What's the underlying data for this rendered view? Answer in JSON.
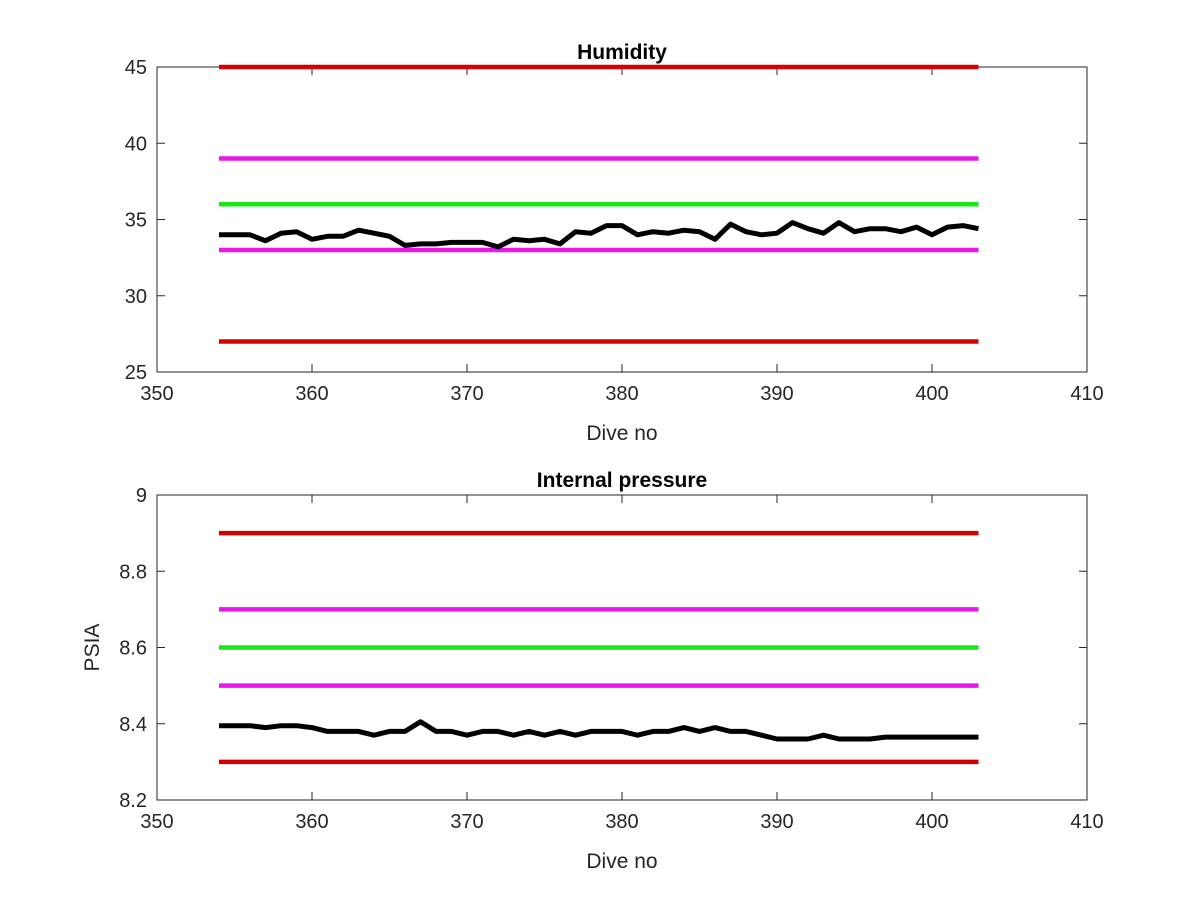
{
  "chart_data": [
    {
      "type": "line",
      "title": "Humidity",
      "xlabel": "Dive no",
      "ylabel": "",
      "xlim": [
        350,
        410
      ],
      "ylim": [
        25,
        45
      ],
      "xticks": [
        350,
        360,
        370,
        380,
        390,
        400,
        410
      ],
      "yticks": [
        25,
        30,
        35,
        40,
        45
      ],
      "grid": false,
      "legend": "none",
      "series": [
        {
          "color": "#d40000",
          "x": [
            354,
            403
          ],
          "values": [
            45,
            45
          ]
        },
        {
          "color": "#e817e8",
          "x": [
            354,
            403
          ],
          "values": [
            39,
            39
          ]
        },
        {
          "color": "#17e817",
          "x": [
            354,
            403
          ],
          "values": [
            36,
            36
          ]
        },
        {
          "color": "#e817e8",
          "x": [
            354,
            403
          ],
          "values": [
            33,
            33
          ]
        },
        {
          "color": "#d40000",
          "x": [
            354,
            403
          ],
          "values": [
            27,
            27
          ]
        },
        {
          "color": "#000000",
          "x": [
            354,
            355,
            356,
            357,
            358,
            359,
            360,
            361,
            362,
            363,
            364,
            365,
            366,
            367,
            368,
            369,
            370,
            371,
            372,
            373,
            374,
            375,
            376,
            377,
            378,
            379,
            380,
            381,
            382,
            383,
            384,
            385,
            386,
            387,
            388,
            389,
            390,
            391,
            392,
            393,
            394,
            395,
            396,
            397,
            398,
            399,
            400,
            401,
            402,
            403
          ],
          "values": [
            34.0,
            34.0,
            34.0,
            33.6,
            34.1,
            34.2,
            33.7,
            33.9,
            33.9,
            34.3,
            34.1,
            33.9,
            33.3,
            33.4,
            33.4,
            33.5,
            33.5,
            33.5,
            33.2,
            33.7,
            33.6,
            33.7,
            33.4,
            34.2,
            34.1,
            34.6,
            34.6,
            34.0,
            34.2,
            34.1,
            34.3,
            34.2,
            33.7,
            34.7,
            34.2,
            34.0,
            34.1,
            34.8,
            34.4,
            34.1,
            34.8,
            34.2,
            34.4,
            34.4,
            34.2,
            34.5,
            34.0,
            34.5,
            34.6,
            34.4
          ]
        }
      ]
    },
    {
      "type": "line",
      "title": "Internal pressure",
      "xlabel": "Dive no",
      "ylabel": "PSIA",
      "xlim": [
        350,
        410
      ],
      "ylim": [
        8.2,
        9
      ],
      "xticks": [
        350,
        360,
        370,
        380,
        390,
        400,
        410
      ],
      "yticks": [
        8.2,
        8.4,
        8.6,
        8.8,
        9
      ],
      "grid": false,
      "legend": "none",
      "series": [
        {
          "color": "#d40000",
          "x": [
            354,
            403
          ],
          "values": [
            8.9,
            8.9
          ]
        },
        {
          "color": "#e817e8",
          "x": [
            354,
            403
          ],
          "values": [
            8.7,
            8.7
          ]
        },
        {
          "color": "#17e817",
          "x": [
            354,
            403
          ],
          "values": [
            8.6,
            8.6
          ]
        },
        {
          "color": "#e817e8",
          "x": [
            354,
            403
          ],
          "values": [
            8.5,
            8.5
          ]
        },
        {
          "color": "#d40000",
          "x": [
            354,
            403
          ],
          "values": [
            8.3,
            8.3
          ]
        },
        {
          "color": "#000000",
          "x": [
            354,
            355,
            356,
            357,
            358,
            359,
            360,
            361,
            362,
            363,
            364,
            365,
            366,
            367,
            368,
            369,
            370,
            371,
            372,
            373,
            374,
            375,
            376,
            377,
            378,
            379,
            380,
            381,
            382,
            383,
            384,
            385,
            386,
            387,
            388,
            389,
            390,
            391,
            392,
            393,
            394,
            395,
            396,
            397,
            398,
            399,
            400,
            401,
            402,
            403
          ],
          "values": [
            8.395,
            8.395,
            8.395,
            8.39,
            8.395,
            8.395,
            8.39,
            8.38,
            8.38,
            8.38,
            8.37,
            8.38,
            8.38,
            8.405,
            8.38,
            8.38,
            8.37,
            8.38,
            8.38,
            8.37,
            8.38,
            8.37,
            8.38,
            8.37,
            8.38,
            8.38,
            8.38,
            8.37,
            8.38,
            8.38,
            8.39,
            8.38,
            8.39,
            8.38,
            8.38,
            8.37,
            8.36,
            8.36,
            8.36,
            8.37,
            8.36,
            8.36,
            8.36,
            8.365,
            8.365,
            8.365,
            8.365,
            8.365,
            8.365,
            8.365
          ]
        }
      ]
    }
  ]
}
